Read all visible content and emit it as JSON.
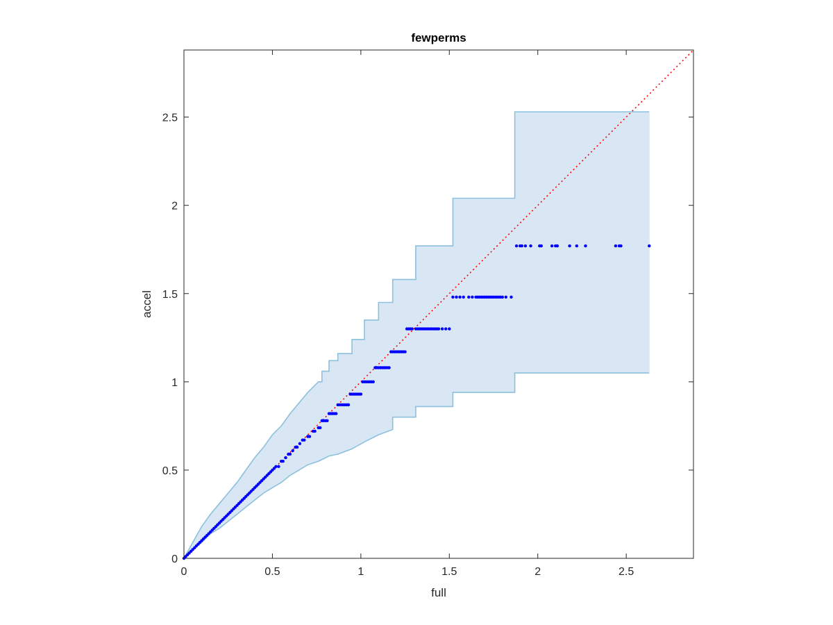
{
  "chart_data": {
    "type": "scatter",
    "title": "fewperms",
    "xlabel": "full",
    "ylabel": "accel",
    "xlim": [
      0,
      2.88
    ],
    "ylim": [
      0,
      2.88
    ],
    "xticks": [
      0,
      0.5,
      1,
      1.5,
      2,
      2.5
    ],
    "yticks": [
      0,
      0.5,
      1,
      1.5,
      2,
      2.5
    ],
    "xtick_labels": [
      "0",
      "0.5",
      "1",
      "1.5",
      "2",
      "2.5"
    ],
    "ytick_labels": [
      "0",
      "0.5",
      "1",
      "1.5",
      "2",
      "2.5"
    ],
    "grid": false,
    "colors": {
      "band_fill": "#d8e7f3",
      "band_edge": "#8cc0dd",
      "points": "#0000ff",
      "reference_line": "#ff0000",
      "axes": "#262626"
    },
    "confidence_band": {
      "upper": [
        [
          0,
          0
        ],
        [
          0.05,
          0.09
        ],
        [
          0.1,
          0.18
        ],
        [
          0.15,
          0.25
        ],
        [
          0.2,
          0.31
        ],
        [
          0.25,
          0.37
        ],
        [
          0.3,
          0.43
        ],
        [
          0.35,
          0.5
        ],
        [
          0.4,
          0.57
        ],
        [
          0.45,
          0.63
        ],
        [
          0.5,
          0.7
        ],
        [
          0.55,
          0.75
        ],
        [
          0.6,
          0.82
        ],
        [
          0.65,
          0.88
        ],
        [
          0.7,
          0.94
        ],
        [
          0.76,
          1.0
        ],
        [
          0.78,
          1.0
        ],
        [
          0.78,
          1.06
        ],
        [
          0.82,
          1.06
        ],
        [
          0.82,
          1.12
        ],
        [
          0.87,
          1.12
        ],
        [
          0.87,
          1.16
        ],
        [
          0.95,
          1.16
        ],
        [
          0.95,
          1.24
        ],
        [
          1.02,
          1.24
        ],
        [
          1.02,
          1.35
        ],
        [
          1.1,
          1.35
        ],
        [
          1.1,
          1.45
        ],
        [
          1.18,
          1.45
        ],
        [
          1.18,
          1.58
        ],
        [
          1.31,
          1.58
        ],
        [
          1.31,
          1.77
        ],
        [
          1.52,
          1.77
        ],
        [
          1.52,
          2.04
        ],
        [
          1.87,
          2.04
        ],
        [
          1.87,
          2.53
        ],
        [
          2.63,
          2.53
        ]
      ],
      "lower": [
        [
          0,
          0
        ],
        [
          0.05,
          0.05
        ],
        [
          0.1,
          0.09
        ],
        [
          0.15,
          0.14
        ],
        [
          0.2,
          0.17
        ],
        [
          0.25,
          0.21
        ],
        [
          0.3,
          0.25
        ],
        [
          0.35,
          0.29
        ],
        [
          0.4,
          0.33
        ],
        [
          0.45,
          0.37
        ],
        [
          0.5,
          0.4
        ],
        [
          0.55,
          0.43
        ],
        [
          0.6,
          0.47
        ],
        [
          0.65,
          0.5
        ],
        [
          0.7,
          0.53
        ],
        [
          0.76,
          0.55
        ],
        [
          0.82,
          0.58
        ],
        [
          0.87,
          0.59
        ],
        [
          0.95,
          0.62
        ],
        [
          1.02,
          0.66
        ],
        [
          1.1,
          0.7
        ],
        [
          1.18,
          0.73
        ],
        [
          1.18,
          0.8
        ],
        [
          1.31,
          0.8
        ],
        [
          1.31,
          0.86
        ],
        [
          1.52,
          0.86
        ],
        [
          1.52,
          0.94
        ],
        [
          1.87,
          0.94
        ],
        [
          1.87,
          1.05
        ],
        [
          2.63,
          1.05
        ]
      ]
    },
    "series": [
      {
        "x": [
          0.0,
          0.01,
          0.02,
          0.03,
          0.04,
          0.05,
          0.06,
          0.07,
          0.08,
          0.09,
          0.1,
          0.11,
          0.12,
          0.13,
          0.14,
          0.15,
          0.16,
          0.17,
          0.18,
          0.19,
          0.2,
          0.21,
          0.22,
          0.23,
          0.24,
          0.25,
          0.26,
          0.27,
          0.28,
          0.29,
          0.3,
          0.31,
          0.32,
          0.33,
          0.34,
          0.35,
          0.36,
          0.37,
          0.38,
          0.39,
          0.4,
          0.41,
          0.42,
          0.43,
          0.44,
          0.45,
          0.46,
          0.47,
          0.48,
          0.49,
          0.5,
          0.51,
          0.52,
          0.535,
          0.55,
          0.56,
          0.575,
          0.59,
          0.6,
          0.615,
          0.63,
          0.64,
          0.655,
          0.67,
          0.68,
          0.7,
          0.71,
          0.73,
          0.74,
          0.76,
          0.77,
          0.78,
          0.79,
          0.8,
          0.81,
          0.82,
          0.83,
          0.84,
          0.85,
          0.86,
          0.87,
          0.88,
          0.89,
          0.9,
          0.91,
          0.92,
          0.93,
          0.94,
          0.95,
          0.96,
          0.97,
          0.98,
          0.99,
          1.0,
          1.01,
          1.02,
          1.03,
          1.04,
          1.05,
          1.06,
          1.07,
          1.08,
          1.09,
          1.1,
          1.11,
          1.12,
          1.13,
          1.14,
          1.15,
          1.16,
          1.17,
          1.18,
          1.19,
          1.2,
          1.21,
          1.22,
          1.23,
          1.24,
          1.25,
          1.26,
          1.27,
          1.28,
          1.29,
          1.31,
          1.32,
          1.33,
          1.34,
          1.35,
          1.36,
          1.37,
          1.38,
          1.39,
          1.4,
          1.41,
          1.42,
          1.43,
          1.44,
          1.46,
          1.48,
          1.5,
          1.52,
          1.54,
          1.56,
          1.58,
          1.61,
          1.63,
          1.65,
          1.66,
          1.67,
          1.68,
          1.69,
          1.7,
          1.71,
          1.72,
          1.73,
          1.74,
          1.75,
          1.76,
          1.77,
          1.78,
          1.79,
          1.8,
          1.82,
          1.85,
          1.88,
          1.9,
          1.91,
          1.93,
          1.96,
          2.01,
          2.02,
          2.08,
          2.1,
          2.11,
          2.18,
          2.22,
          2.27,
          2.44,
          2.46,
          2.47,
          2.63
        ],
        "y": [
          0.0,
          0.01,
          0.02,
          0.03,
          0.04,
          0.05,
          0.06,
          0.07,
          0.08,
          0.09,
          0.1,
          0.11,
          0.12,
          0.13,
          0.14,
          0.15,
          0.16,
          0.17,
          0.18,
          0.19,
          0.2,
          0.21,
          0.22,
          0.23,
          0.24,
          0.25,
          0.26,
          0.27,
          0.28,
          0.29,
          0.3,
          0.31,
          0.32,
          0.33,
          0.34,
          0.35,
          0.36,
          0.37,
          0.38,
          0.39,
          0.4,
          0.41,
          0.42,
          0.43,
          0.44,
          0.45,
          0.46,
          0.47,
          0.48,
          0.49,
          0.5,
          0.51,
          0.52,
          0.52,
          0.55,
          0.55,
          0.57,
          0.59,
          0.59,
          0.61,
          0.63,
          0.63,
          0.65,
          0.67,
          0.67,
          0.69,
          0.69,
          0.72,
          0.72,
          0.74,
          0.74,
          0.78,
          0.78,
          0.78,
          0.78,
          0.82,
          0.82,
          0.82,
          0.82,
          0.82,
          0.87,
          0.87,
          0.87,
          0.87,
          0.87,
          0.87,
          0.87,
          0.93,
          0.93,
          0.93,
          0.93,
          0.93,
          0.93,
          0.93,
          1.0,
          1.0,
          1.0,
          1.0,
          1.0,
          1.0,
          1.0,
          1.08,
          1.08,
          1.08,
          1.08,
          1.08,
          1.08,
          1.08,
          1.08,
          1.08,
          1.17,
          1.17,
          1.17,
          1.17,
          1.17,
          1.17,
          1.17,
          1.17,
          1.17,
          1.3,
          1.3,
          1.3,
          1.3,
          1.3,
          1.3,
          1.3,
          1.3,
          1.3,
          1.3,
          1.3,
          1.3,
          1.3,
          1.3,
          1.3,
          1.3,
          1.3,
          1.3,
          1.3,
          1.3,
          1.3,
          1.48,
          1.48,
          1.48,
          1.48,
          1.48,
          1.48,
          1.48,
          1.48,
          1.48,
          1.48,
          1.48,
          1.48,
          1.48,
          1.48,
          1.48,
          1.48,
          1.48,
          1.48,
          1.48,
          1.48,
          1.48,
          1.48,
          1.48,
          1.48,
          1.77,
          1.77,
          1.77,
          1.77,
          1.77,
          1.77,
          1.77,
          1.77,
          1.77,
          1.77,
          1.77,
          1.77,
          1.77,
          1.77,
          1.77,
          1.77,
          1.77
        ]
      }
    ],
    "reference_line": {
      "x": [
        0,
        2.88
      ],
      "y": [
        0,
        2.88
      ],
      "style": "dotted"
    }
  }
}
